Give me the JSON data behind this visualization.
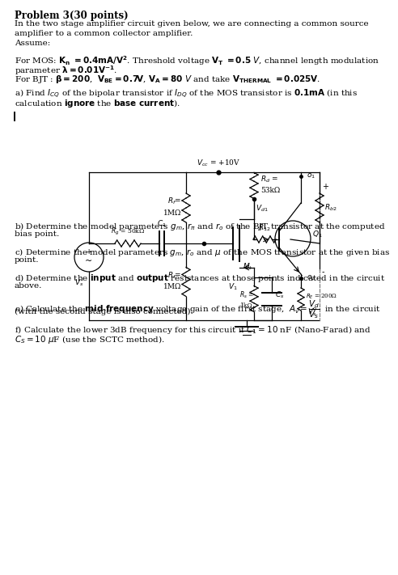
{
  "bg": "#ffffff",
  "title": "Problem 3(30 points)",
  "line1": "In the two stage amplifier circuit given below, we are connecting a common source",
  "line2": "amplifier to a common collector amplifier.",
  "line3": "Assume:",
  "mos_line1": "For MOS: $\\mathbf{K_n}$ $\\mathbf{= 0.4mA/V^2}$. Threshold voltage $\\mathbf{V_T}$ $\\mathbf{= 0.5}$ $V$, channel length modulation",
  "mos_line2": "parameter $\\mathbf{\\lambda = 0.01V^{-1}}$.",
  "bjt_line": "For BJT : $\\mathbf{\\beta = 200}$,  $\\mathbf{V_{BE} = 0.7V}$, $\\mathbf{V_A = 80}$ $V$ and take $\\mathbf{V_{THERMAL}}$ $\\mathbf{= 0.025V}$.",
  "a_line1": "a) Find $I_{CQ}$ of the bipolar transistor if $I_{DQ}$ of the MOS transistor is $\\mathbf{0.1mA}$ (in this",
  "a_line2": "calculation $\\mathbf{ignore}$ the $\\mathbf{base\\ current}$).",
  "b_line1": "b) Determine the model parameters $g_m$, $r_\\pi$ and $r_o$ of the BJT transistor at the computed",
  "b_line2": "bias point.",
  "c_line1": "c) Determine the model parameters $g_m$, $r_o$ and $\\mu$ of the MOS transistor at the given bias",
  "c_line2": "point.",
  "d_line1": "d) Determine the $\\mathbf{input}$ and $\\mathbf{output}$ resistances at those points indicated in the circuit",
  "d_line2": "above.",
  "e_line1": "e) Calculate the $\\mathbf{mid}$-$\\mathbf{frequency}$ voltage gain of the first stage,  $A_v = \\dfrac{V_{d}}{V_s}$  in the circuit",
  "e_line2": "(with the second stage is also connected).",
  "f_line1": "f) Calculate the lower 3dB frequency for this circuit if $C_1 = 10$ nF (Nano-Farad) and",
  "f_line2": "$C_S = 10$ $\\mu$F (use the SCTC method)."
}
